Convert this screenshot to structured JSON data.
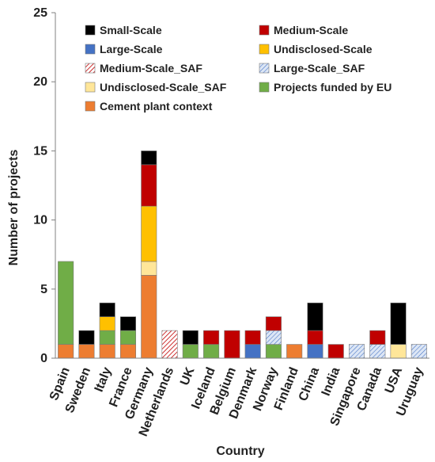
{
  "chart_data": {
    "type": "bar",
    "stacked": true,
    "xlabel": "Country",
    "ylabel": "Number of projects",
    "ylim": [
      0,
      25
    ],
    "yticks": [
      0,
      5,
      10,
      15,
      20,
      25
    ],
    "grid": false,
    "legend_position": "top-inside",
    "categories": [
      "Spain",
      "Sweden",
      "Italy",
      "France",
      "Germany",
      "Netherlands",
      "UK",
      "Iceland",
      "Belgium",
      "Denmark",
      "Norway",
      "Finland",
      "China",
      "India",
      "Singapore",
      "Canada",
      "USA",
      "Uruguay"
    ],
    "series": [
      {
        "name": "Cement plant context",
        "color": "#ED7D31",
        "pattern": "solid",
        "values": [
          1,
          1,
          1,
          1,
          6,
          0,
          0,
          0,
          0,
          0,
          0,
          1,
          0,
          0,
          0,
          0,
          0,
          0
        ]
      },
      {
        "name": "Projects funded by EU",
        "color": "#70AD47",
        "pattern": "solid",
        "values": [
          6,
          0,
          1,
          1,
          0,
          0,
          1,
          1,
          0,
          0,
          1,
          0,
          0,
          0,
          0,
          0,
          0,
          0
        ]
      },
      {
        "name": "Undisclosed-Scale_SAF",
        "color": "#FFE699",
        "pattern": "solid",
        "values": [
          0,
          0,
          0,
          0,
          1,
          0,
          0,
          0,
          0,
          0,
          0,
          0,
          0,
          0,
          0,
          0,
          1,
          0
        ]
      },
      {
        "name": "Large-Scale_SAF",
        "color": "#4472C4",
        "pattern": "dots",
        "values": [
          0,
          0,
          0,
          0,
          0,
          0,
          0,
          0,
          0,
          0,
          1,
          0,
          0,
          0,
          1,
          1,
          0,
          1
        ]
      },
      {
        "name": "Medium-Scale_SAF",
        "color": "#C00000",
        "pattern": "hatch",
        "values": [
          0,
          0,
          0,
          0,
          0,
          2,
          0,
          0,
          0,
          0,
          0,
          0,
          0,
          0,
          0,
          0,
          0,
          0
        ]
      },
      {
        "name": "Large-Scale",
        "color": "#4472C4",
        "pattern": "solid",
        "values": [
          0,
          0,
          0,
          0,
          0,
          0,
          0,
          0,
          0,
          1,
          0,
          0,
          1,
          0,
          0,
          0,
          0,
          0
        ]
      },
      {
        "name": "Undisclosed-Scale",
        "color": "#FFC000",
        "pattern": "solid",
        "values": [
          0,
          0,
          1,
          0,
          4,
          0,
          0,
          0,
          0,
          0,
          0,
          0,
          0,
          0,
          0,
          0,
          0,
          0
        ]
      },
      {
        "name": "Medium-Scale",
        "color": "#C00000",
        "pattern": "solid",
        "values": [
          0,
          0,
          0,
          0,
          3,
          0,
          0,
          1,
          2,
          1,
          1,
          0,
          1,
          1,
          0,
          1,
          0,
          0
        ]
      },
      {
        "name": "Small-Scale",
        "color": "#000000",
        "pattern": "solid",
        "values": [
          0,
          1,
          1,
          1,
          1,
          0,
          1,
          0,
          0,
          0,
          0,
          0,
          2,
          0,
          0,
          0,
          3,
          0
        ]
      }
    ],
    "legend_order": [
      "Small-Scale",
      "Medium-Scale",
      "Large-Scale",
      "Undisclosed-Scale",
      "Medium-Scale_SAF",
      "Large-Scale_SAF",
      "Undisclosed-Scale_SAF",
      "Projects funded by EU",
      "Cement plant context"
    ]
  }
}
